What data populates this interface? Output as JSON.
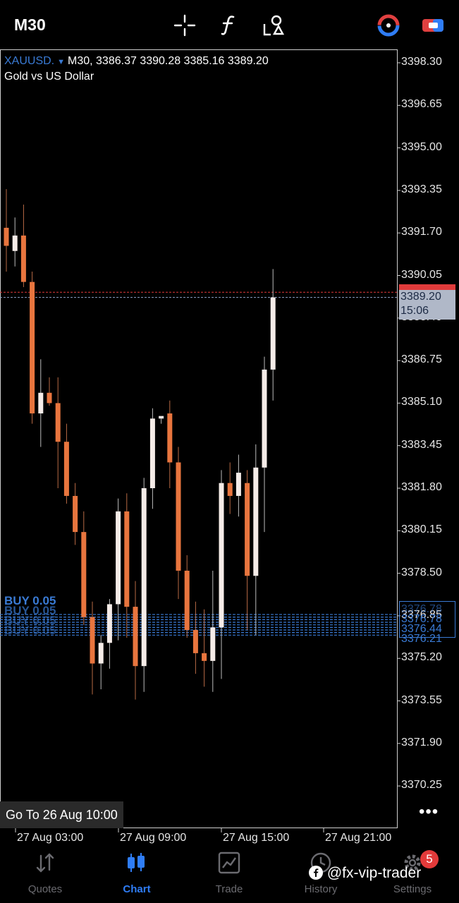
{
  "topbar": {
    "timeframe": "M30",
    "icons": [
      "crosshair-icon",
      "function-icon",
      "objects-icon",
      "one-click-trade-icon",
      "toggle-icon"
    ]
  },
  "chart": {
    "symbol": "XAUUSD.",
    "symbol_arrow": "▼",
    "ohlc_text": "M30, 3386.37 3390.28 3385.16 3389.20",
    "description": "Gold vs US Dollar",
    "bid_price": "3389.20",
    "bid_time": "15:06",
    "order_label": "BUY 0.05",
    "order_prices": [
      "3376.78",
      "3376.44",
      "3376.21"
    ],
    "goto_label": "Go To 26 Aug 10:00",
    "more_label": "•••",
    "colors": {
      "bull": "#f5ece8",
      "bear": "#e8753e",
      "order": "#3a7bd5",
      "ask_line": "#e03b3b",
      "bid_line": "#8da2c8"
    }
  },
  "chart_data": {
    "type": "candlestick",
    "symbol": "XAUUSD.",
    "timeframe": "M30",
    "y_ticks": [
      "3398.30",
      "3396.65",
      "3395.00",
      "3393.35",
      "3391.70",
      "3390.05",
      "3388.40",
      "3386.75",
      "3385.10",
      "3383.45",
      "3381.80",
      "3380.15",
      "3378.50",
      "3376.85",
      "3375.20",
      "3373.55",
      "3371.90",
      "3370.25"
    ],
    "ylim": [
      3369.4,
      3398.8
    ],
    "x_ticks": [
      "27 Aug 03:00",
      "27 Aug 09:00",
      "27 Aug 15:00",
      "27 Aug 21:00"
    ],
    "ask_line": 3389.4,
    "bid_line": 3389.2,
    "order_lines": [
      3376.9,
      3376.8,
      3376.7,
      3376.6,
      3376.5,
      3376.4,
      3376.3,
      3376.2,
      3376.1
    ],
    "candles": [
      {
        "o": 3391.9,
        "h": 3393.4,
        "l": 3390.2,
        "c": 3391.2
      },
      {
        "o": 3391.0,
        "h": 3392.3,
        "l": 3390.4,
        "c": 3391.6
      },
      {
        "o": 3391.6,
        "h": 3392.8,
        "l": 3389.6,
        "c": 3389.8
      },
      {
        "o": 3389.8,
        "h": 3390.2,
        "l": 3384.3,
        "c": 3384.7
      },
      {
        "o": 3384.7,
        "h": 3386.8,
        "l": 3383.4,
        "c": 3385.5
      },
      {
        "o": 3385.5,
        "h": 3386.1,
        "l": 3385.0,
        "c": 3385.1
      },
      {
        "o": 3385.1,
        "h": 3386.1,
        "l": 3381.8,
        "c": 3383.6
      },
      {
        "o": 3383.6,
        "h": 3384.3,
        "l": 3381.2,
        "c": 3381.5
      },
      {
        "o": 3381.5,
        "h": 3382.0,
        "l": 3379.6,
        "c": 3380.1
      },
      {
        "o": 3380.1,
        "h": 3380.9,
        "l": 3376.5,
        "c": 3376.8
      },
      {
        "o": 3376.8,
        "h": 3377.4,
        "l": 3373.8,
        "c": 3375.0
      },
      {
        "o": 3375.0,
        "h": 3376.1,
        "l": 3374.0,
        "c": 3375.8
      },
      {
        "o": 3375.8,
        "h": 3377.5,
        "l": 3374.8,
        "c": 3377.3
      },
      {
        "o": 3377.3,
        "h": 3381.4,
        "l": 3375.9,
        "c": 3380.9
      },
      {
        "o": 3380.9,
        "h": 3381.6,
        "l": 3376.0,
        "c": 3377.2
      },
      {
        "o": 3377.2,
        "h": 3378.2,
        "l": 3373.6,
        "c": 3374.9
      },
      {
        "o": 3374.9,
        "h": 3382.2,
        "l": 3373.9,
        "c": 3381.8
      },
      {
        "o": 3381.8,
        "h": 3384.9,
        "l": 3381.0,
        "c": 3384.5
      },
      {
        "o": 3384.5,
        "h": 3384.5,
        "l": 3384.3,
        "c": 3384.6
      },
      {
        "o": 3384.7,
        "h": 3385.2,
        "l": 3381.8,
        "c": 3382.8
      },
      {
        "o": 3382.8,
        "h": 3383.4,
        "l": 3377.5,
        "c": 3378.6
      },
      {
        "o": 3378.6,
        "h": 3379.2,
        "l": 3376.0,
        "c": 3376.3
      },
      {
        "o": 3376.3,
        "h": 3377.4,
        "l": 3374.6,
        "c": 3375.4
      },
      {
        "o": 3375.4,
        "h": 3377.1,
        "l": 3374.1,
        "c": 3375.1
      },
      {
        "o": 3375.1,
        "h": 3378.6,
        "l": 3373.9,
        "c": 3376.4
      },
      {
        "o": 3376.4,
        "h": 3382.5,
        "l": 3374.4,
        "c": 3382.0
      },
      {
        "o": 3382.0,
        "h": 3382.8,
        "l": 3380.8,
        "c": 3381.5
      },
      {
        "o": 3381.5,
        "h": 3383.1,
        "l": 3380.7,
        "c": 3382.4
      },
      {
        "o": 3382.0,
        "h": 3382.5,
        "l": 3376.3,
        "c": 3378.4
      },
      {
        "o": 3378.4,
        "h": 3383.5,
        "l": 3376.1,
        "c": 3382.6
      },
      {
        "o": 3382.6,
        "h": 3386.9,
        "l": 3380.1,
        "c": 3386.4
      },
      {
        "o": 3386.4,
        "h": 3390.3,
        "l": 3385.2,
        "c": 3389.2
      }
    ]
  },
  "tabbar": {
    "tabs": [
      {
        "label": "Quotes",
        "icon": "quotes-arrows-icon"
      },
      {
        "label": "Chart",
        "icon": "candlestick-chart-icon"
      },
      {
        "label": "Trade",
        "icon": "trade-line-icon"
      },
      {
        "label": "History",
        "icon": "history-clock-icon"
      },
      {
        "label": "Settings",
        "icon": "settings-gear-icon"
      }
    ],
    "active": "Chart",
    "settings_badge": "5",
    "watermark": "@fx-vip-trader"
  }
}
